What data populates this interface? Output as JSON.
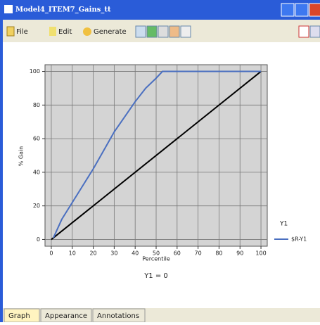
{
  "window": {
    "title": "Model4_ITEM7_Gains_tt",
    "menu": [
      "File",
      "Edit",
      "Generate"
    ],
    "tabs": [
      "Graph",
      "Appearance",
      "Annotations"
    ]
  },
  "chart_data": {
    "type": "line",
    "subtitle": "Y1 = 0",
    "x_label": "Percentile",
    "y_label": "% Gain",
    "legend_title": "Y1",
    "legend": "right",
    "grid": true,
    "background": "#d4d4d4",
    "xlim": [
      -3,
      103
    ],
    "ylim": [
      -4,
      104
    ],
    "xticks": [
      0,
      10,
      20,
      30,
      40,
      50,
      60,
      70,
      80,
      90,
      100
    ],
    "yticks": [
      0,
      20,
      40,
      60,
      80,
      100
    ],
    "series": [
      {
        "name": "$R-Y1",
        "color": "#4a6fc0",
        "x": [
          1,
          5,
          10,
          15,
          20,
          25,
          30,
          35,
          40,
          45,
          50,
          53,
          60,
          70,
          80,
          90,
          100
        ],
        "values": [
          1,
          12,
          22,
          32,
          42,
          53,
          64,
          73,
          82,
          90,
          96,
          100,
          100,
          100,
          100,
          100,
          100
        ]
      }
    ],
    "baseline": {
      "color": "#000000",
      "x": [
        0,
        100
      ],
      "values": [
        0,
        100
      ]
    }
  }
}
